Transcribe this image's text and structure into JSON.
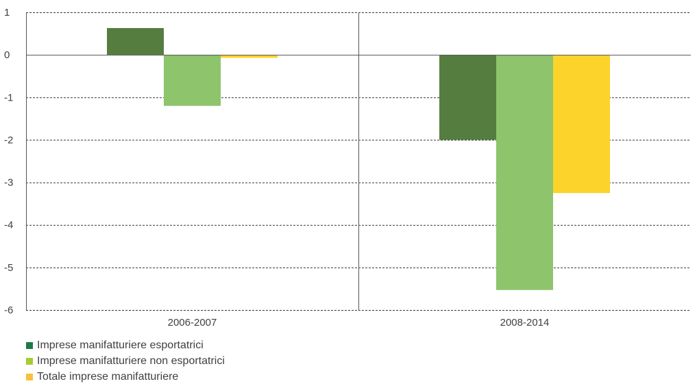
{
  "chart_data": {
    "type": "bar",
    "categories": [
      "2006-2007",
      "2008-2014"
    ],
    "series": [
      {
        "name": "Imprese manifatturiere esportatrici",
        "values": [
          0.63,
          -2.0
        ],
        "color": "#567d40",
        "legend_color": "#1e7a48"
      },
      {
        "name": "Imprese manifatturiere non esportatrici",
        "values": [
          -1.2,
          -5.53
        ],
        "color": "#8ec46c",
        "legend_color": "#a4cc34"
      },
      {
        "name": "Totale imprese manifatturiere",
        "values": [
          -0.07,
          -3.25
        ],
        "color": "#fcd32b",
        "legend_color": "#fbbf3e"
      }
    ],
    "ylim": [
      -6,
      1
    ],
    "yticks": [
      "1",
      "0",
      "-1",
      "-2",
      "-3",
      "-4",
      "-5",
      "-6"
    ],
    "grid": true,
    "legend_position": "bottom-left"
  }
}
